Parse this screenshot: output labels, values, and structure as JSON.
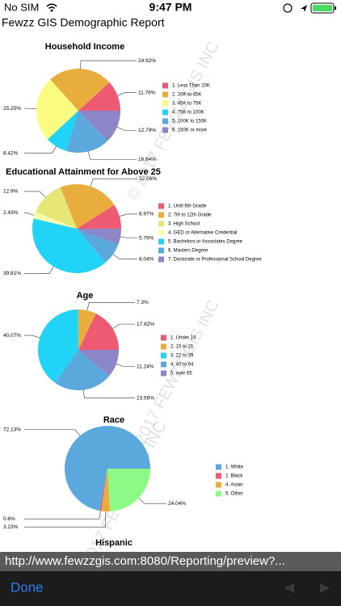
{
  "status_bar": {
    "carrier": "No SIM",
    "time": "9:47 PM"
  },
  "header": {
    "title": "Fewzz GIS Demographic Report"
  },
  "watermark": "© 2017 FEWZZ GIS INC",
  "chart_data": [
    {
      "type": "pie",
      "title": "Household Income",
      "categories": [
        "1. Less Than 20K",
        "2. 20K to 45K",
        "3. 45K to 75K",
        "4. 75K to 100K",
        "5. 100K to 150K",
        "6. 150K or more"
      ],
      "values": [
        11.78,
        24.92,
        25.25,
        8.42,
        16.84,
        12.79
      ],
      "value_labels": [
        "11.78%",
        "24.92%",
        "25.25%",
        "8.42%",
        "16.84%",
        "12.79%"
      ],
      "colors": [
        "#ee5a72",
        "#e8ad3c",
        "#fbfb82",
        "#22d3f8",
        "#5aa8dc",
        "#8b86c8"
      ]
    },
    {
      "type": "pie",
      "title": "Educational Attainment for Above 25",
      "categories": [
        "1. Until 6th Grade",
        "2. 7th to 12th Grade",
        "3. High School",
        "4. GED or Alternative Credential",
        "5. Bachelors or Associates Degree",
        "6. Masters Degree",
        "7. Doctorate or Professional School Degree"
      ],
      "values": [
        8.97,
        22.06,
        12.9,
        2.43,
        39.81,
        8.04,
        5.79
      ],
      "value_labels": [
        "8.97%",
        "22.06%",
        "12.9%",
        "2.43%",
        "39.81%",
        "8.04%",
        "5.79%"
      ],
      "colors": [
        "#ee5a72",
        "#e8ad3c",
        "#e6e676",
        "#fbfbb0",
        "#22d3f8",
        "#5aa8dc",
        "#8b86c8"
      ]
    },
    {
      "type": "pie",
      "title": "Age",
      "categories": [
        "1. Under 14",
        "2. 15 to 21",
        "3. 22 to 39",
        "4. 40 to 64",
        "5. over 65"
      ],
      "values": [
        17.82,
        7.3,
        40.07,
        23.56,
        11.24
      ],
      "value_labels": [
        "17.82%",
        "7.3%",
        "40.07%",
        "23.56%",
        "11.24%"
      ],
      "colors": [
        "#ee5a72",
        "#e8ad3c",
        "#22d3f8",
        "#5aa8dc",
        "#8b86c8"
      ]
    },
    {
      "type": "pie",
      "title": "Race",
      "categories": [
        "1. White",
        "2. Black",
        "4. Asian",
        "5. Other"
      ],
      "values": [
        72.13,
        0.6,
        3.23,
        24.04
      ],
      "value_labels": [
        "72.13%",
        "0.6%",
        "3.23%",
        "24.04%"
      ],
      "colors": [
        "#5aa8dc",
        "#ee5a72",
        "#e8ad3c",
        "#8cfb86"
      ]
    },
    {
      "type": "pie",
      "title": "Hispanic"
    }
  ],
  "url_bar": {
    "url": "http://www.fewzzgis.com:8080/Reporting/preview?..."
  },
  "toolbar": {
    "done": "Done"
  }
}
